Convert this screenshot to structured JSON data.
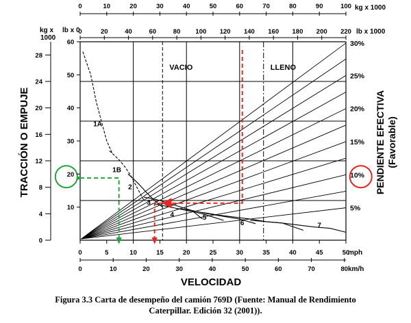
{
  "caption": {
    "line1": "Figura 3.3 Carta de desempeño del camión 769D (Fuente: Manual de Rendimiento",
    "line2": "Caterpillar. Edición 32 (2001))."
  },
  "chart_data": {
    "type": "line",
    "title": "",
    "xlabel": "VELOCIDAD",
    "ylabel": "TRACCIÓN O EMPUJE",
    "right_axis_label_1": "PENDIENTE EFECTIVA",
    "right_axis_label_2": "(Favorable)",
    "x_unit_mph": "mph",
    "x_unit_kmh": "km/h",
    "top_unit_kg": "kg x 1000",
    "top_unit_lb": "lb x 1000",
    "left_unit_kg": "kg x",
    "left_unit_kg2": "1000",
    "left_unit_lb": "lb x 0",
    "xlim_mph": [
      0,
      50
    ],
    "ylim_kg": [
      0,
      30
    ],
    "ylim_lb": [
      0,
      60
    ],
    "grid": true,
    "mph_ticks": [
      "0",
      "5",
      "10",
      "15",
      "20",
      "25",
      "30",
      "35",
      "40",
      "45",
      "50"
    ],
    "kmh_ticks": [
      "0",
      "10",
      "20",
      "30",
      "40",
      "50",
      "60",
      "70",
      "80"
    ],
    "kmh_tick_values": [
      0,
      10,
      20,
      30,
      40,
      50,
      60,
      70,
      80
    ],
    "kg_ticks": [
      "0",
      "4",
      "8",
      "12",
      "16",
      "20",
      "24",
      "28"
    ],
    "kg_tick_values": [
      0,
      4,
      8,
      12,
      16,
      20,
      24,
      28
    ],
    "lb_ticks": [
      "10",
      "20",
      "30",
      "40",
      "50",
      "60"
    ],
    "lb_tick_values": [
      10,
      20,
      30,
      40,
      50,
      60
    ],
    "top_kg_ticks": [
      "0",
      "10",
      "20",
      "30",
      "40",
      "50",
      "60",
      "70",
      "80",
      "90",
      "100"
    ],
    "top_lb_ticks": [
      "0",
      "20",
      "40",
      "60",
      "80",
      "100",
      "120",
      "140",
      "160",
      "180",
      "200",
      "220"
    ],
    "top_lb_tick_values": [
      0,
      20,
      40,
      60,
      80,
      100,
      120,
      140,
      160,
      180,
      200,
      220
    ],
    "grade_lines": [
      {
        "label": "30%",
        "end_kg": 29.8
      },
      {
        "label": "",
        "end_kg": 27.4
      },
      {
        "label": "25%",
        "end_kg": 24.9
      },
      {
        "label": "",
        "end_kg": 22.4
      },
      {
        "label": "20%",
        "end_kg": 19.9
      },
      {
        "label": "",
        "end_kg": 17.4
      },
      {
        "label": "15%",
        "end_kg": 14.9
      },
      {
        "label": "",
        "end_kg": 12.4
      },
      {
        "label": "10%",
        "end_kg": 9.9
      },
      {
        "label": "",
        "end_kg": 7.4
      },
      {
        "label": "5%",
        "end_kg": 4.9
      }
    ],
    "weight_lines": [
      {
        "label": "VACIO",
        "top_kg": 31,
        "style": "dashed"
      },
      {
        "label": "LLENO",
        "top_kg": 69,
        "style": "dashdot"
      }
    ],
    "gear_curves": [
      {
        "name": "1A",
        "x": [
          0.5,
          2,
          3,
          4,
          5,
          6
        ],
        "y": [
          28.5,
          25,
          21,
          18,
          15,
          13.2
        ]
      },
      {
        "name": "1B",
        "x": [
          5.5,
          6.5,
          7.5,
          8.5,
          9.5,
          11,
          12
        ],
        "y": [
          13.5,
          12.8,
          12,
          11,
          9.8,
          7.5,
          6
        ]
      },
      {
        "name": "2",
        "x": [
          9,
          10,
          11,
          12.5,
          14,
          15.5
        ],
        "y": [
          10,
          9.3,
          8.5,
          7.2,
          6,
          5
        ]
      },
      {
        "name": "3",
        "x": [
          12,
          13.5,
          15,
          17,
          19,
          21,
          23
        ],
        "y": [
          6.5,
          6.3,
          6,
          5.5,
          5,
          4.5,
          3.2
        ]
      },
      {
        "name": "4",
        "x": [
          14,
          17,
          20,
          23,
          25,
          27
        ],
        "y": [
          5.5,
          5,
          4.5,
          4,
          3.5,
          3
        ]
      },
      {
        "name": "5",
        "x": [
          18,
          21,
          24,
          27,
          30,
          33
        ],
        "y": [
          4.8,
          4.5,
          4,
          3.6,
          3.2,
          2.5
        ]
      },
      {
        "name": "6",
        "x": [
          23,
          26,
          29,
          32,
          35,
          38,
          42
        ],
        "y": [
          4.2,
          3.8,
          3.5,
          3.2,
          2.8,
          2.6,
          1.5
        ]
      },
      {
        "name": "7",
        "x": [
          32,
          35,
          38,
          41,
          44,
          47,
          50
        ],
        "y": [
          3,
          2.8,
          2.6,
          2.3,
          2,
          1.8,
          1.2
        ]
      }
    ],
    "gear_label_positions": [
      {
        "name": "1A",
        "x": 3.3,
        "y": 17.2
      },
      {
        "name": "1B",
        "x": 6.9,
        "y": 10.3
      },
      {
        "name": "2",
        "x": 9.4,
        "y": 7.7
      },
      {
        "name": "3",
        "x": 12.9,
        "y": 5.4
      },
      {
        "name": "4",
        "x": 17.3,
        "y": 3.5
      },
      {
        "name": "5",
        "x": 23.4,
        "y": 3.1
      },
      {
        "name": "6",
        "x": 30.5,
        "y": 2.3
      },
      {
        "name": "7",
        "x": 45,
        "y": 1.9
      }
    ],
    "annotations": {
      "red_path": [
        [
          14,
          0
        ],
        [
          14,
          5.6
        ],
        [
          30.5,
          5.6
        ],
        [
          30.5,
          26
        ],
        [
          30.5,
          29.2
        ]
      ],
      "green_path": [
        [
          0,
          9.4
        ],
        [
          7.3,
          9.4
        ],
        [
          7.3,
          0
        ]
      ],
      "green_circle": {
        "x": -2.6,
        "y": 9.6
      },
      "red_circle": {
        "x": 52.8,
        "y": 9.6
      },
      "red_color": "#e8261f",
      "green_color": "#22a53c"
    }
  }
}
